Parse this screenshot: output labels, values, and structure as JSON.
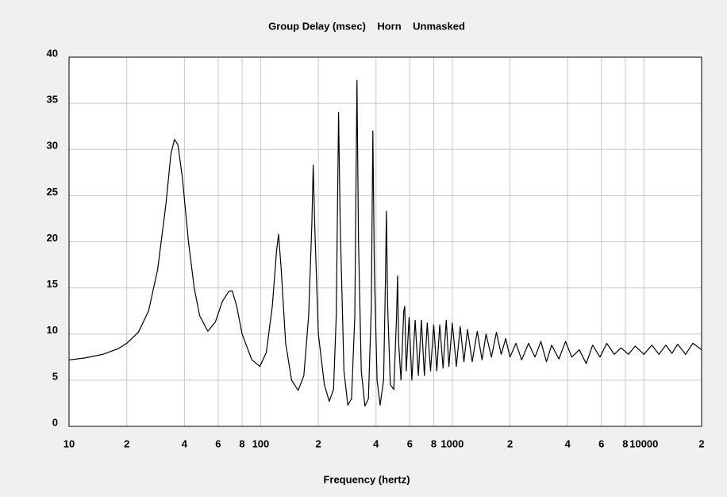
{
  "chart_data": {
    "type": "line",
    "title": "Group Delay (msec)    Horn    Unmasked",
    "xlabel": "Frequency (hertz)",
    "log_x": true,
    "grid": true,
    "color": "#000000",
    "xlim": [
      10,
      20000
    ],
    "ylim": [
      0,
      40
    ],
    "xticks": [
      10,
      {
        "value": 20,
        "label": "2"
      },
      {
        "value": 40,
        "label": "4"
      },
      {
        "value": 60,
        "label": "6"
      },
      {
        "value": 80,
        "label": "8"
      },
      100,
      {
        "value": 200,
        "label": "2"
      },
      {
        "value": 400,
        "label": "4"
      },
      {
        "value": 600,
        "label": "6"
      },
      {
        "value": 800,
        "label": "8"
      },
      1000,
      {
        "value": 2000,
        "label": "2"
      },
      {
        "value": 4000,
        "label": "4"
      },
      {
        "value": 6000,
        "label": "6"
      },
      {
        "value": 8000,
        "label": "8"
      },
      10000,
      {
        "value": 20000,
        "label": "2"
      }
    ],
    "yticks": [
      0,
      5,
      10,
      15,
      20,
      25,
      30,
      35,
      40
    ],
    "x": [
      10,
      12,
      15,
      18,
      20,
      23,
      26,
      29,
      32,
      34,
      35.5,
      37,
      39,
      42,
      45,
      48,
      53,
      58,
      63,
      68,
      71,
      75,
      80,
      90,
      99,
      107,
      115,
      121,
      124,
      128,
      135,
      145,
      157,
      168,
      178,
      185,
      188,
      192,
      200,
      215,
      228,
      240,
      248,
      255,
      260,
      272,
      285,
      298,
      310,
      318,
      324,
      335,
      350,
      365,
      378,
      385,
      392,
      405,
      420,
      438,
      448,
      453,
      460,
      475,
      495,
      512,
      518,
      525,
      540,
      558,
      565,
      575,
      595,
      615,
      640,
      665,
      690,
      715,
      740,
      770,
      800,
      830,
      860,
      895,
      930,
      960,
      1000,
      1050,
      1100,
      1150,
      1200,
      1270,
      1350,
      1430,
      1500,
      1600,
      1700,
      1800,
      1900,
      2000,
      2150,
      2300,
      2500,
      2700,
      2900,
      3100,
      3300,
      3600,
      3900,
      4200,
      4600,
      5000,
      5400,
      5900,
      6400,
      7000,
      7600,
      8300,
      9000,
      10000,
      11000,
      12000,
      13000,
      14000,
      15000,
      16500,
      18000,
      20000
    ],
    "values": [
      7.2,
      7.4,
      7.8,
      8.4,
      9,
      10.2,
      12.5,
      17,
      24,
      29.5,
      31.1,
      30.5,
      27,
      20,
      15,
      12,
      10.3,
      11.3,
      13.5,
      14.6,
      14.7,
      13,
      10,
      7.2,
      6.5,
      8,
      13,
      19,
      20.8,
      17,
      9,
      5,
      3.9,
      5.5,
      12,
      22,
      28.3,
      21,
      10,
      4.5,
      2.7,
      4,
      12,
      34,
      22,
      6,
      2.3,
      3,
      12,
      37.5,
      20,
      6,
      2.2,
      3,
      13,
      32,
      17,
      5,
      2.3,
      5,
      16,
      23.3,
      13,
      4.5,
      4,
      12,
      16.3,
      9,
      5,
      12.5,
      13,
      6,
      11.8,
      5,
      11.5,
      5.5,
      11.5,
      5.5,
      11.2,
      6,
      11,
      6,
      11,
      6.3,
      11.5,
      6.5,
      11.2,
      6.5,
      10.8,
      7,
      10.5,
      7,
      10.3,
      7.2,
      10,
      7.5,
      10.2,
      7.8,
      9.5,
      7.5,
      9,
      7.2,
      9,
      7.5,
      9.2,
      7,
      8.8,
      7.3,
      9.2,
      7.5,
      8.3,
      6.8,
      8.8,
      7.5,
      9,
      7.8,
      8.5,
      7.8,
      8.7,
      7.8,
      8.8,
      7.8,
      8.8,
      7.9,
      8.9,
      7.8,
      9,
      8.3
    ]
  }
}
